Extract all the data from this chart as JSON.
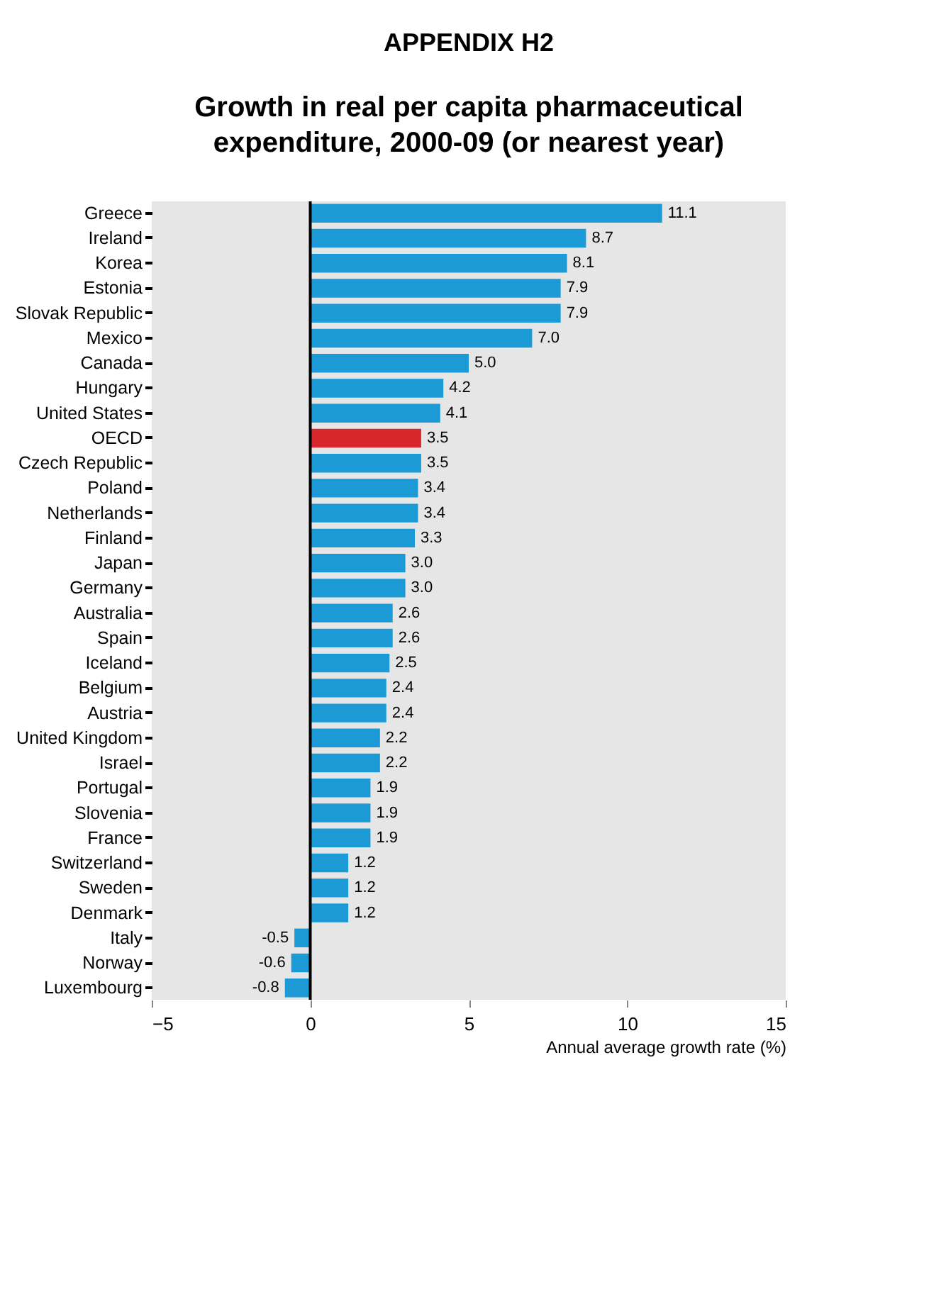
{
  "chart_data": {
    "type": "bar",
    "orientation": "horizontal",
    "title": "APPENDIX H2",
    "subtitle": "Growth in real per capita pharmaceutical expenditure, 2000-09 (or nearest year)",
    "xlabel": "Annual average growth rate (%)",
    "categories": [
      "Greece",
      "Ireland",
      "Korea",
      "Estonia",
      "Slovak Republic",
      "Mexico",
      "Canada",
      "Hungary",
      "United States",
      "OECD",
      "Czech Republic",
      "Poland",
      "Netherlands",
      "Finland",
      "Japan",
      "Germany",
      "Australia",
      "Spain",
      "Iceland",
      "Belgium",
      "Austria",
      "United Kingdom",
      "Israel",
      "Portugal",
      "Slovenia",
      "France",
      "Switzerland",
      "Sweden",
      "Denmark",
      "Italy",
      "Norway",
      "Luxembourg"
    ],
    "values": [
      11.1,
      8.7,
      8.1,
      7.9,
      7.9,
      7.0,
      5.0,
      4.2,
      4.1,
      3.5,
      3.5,
      3.4,
      3.4,
      3.3,
      3.0,
      3.0,
      2.6,
      2.6,
      2.5,
      2.4,
      2.4,
      2.2,
      2.2,
      1.9,
      1.9,
      1.9,
      1.2,
      1.2,
      1.2,
      -0.5,
      -0.6,
      -0.8
    ],
    "value_labels": [
      "11.1",
      "8.7",
      "8.1",
      "7.9",
      "7.9",
      "7.0",
      "5.0",
      "4.2",
      "4.1",
      "3.5",
      "3.5",
      "3.4",
      "3.4",
      "3.3",
      "3.0",
      "3.0",
      "2.6",
      "2.6",
      "2.5",
      "2.4",
      "2.4",
      "2.2",
      "2.2",
      "1.9",
      "1.9",
      "1.9",
      "1.2",
      "1.2",
      "1.2",
      "-0.5",
      "-0.6",
      "-0.8"
    ],
    "colors": [
      "#1b9ad6",
      "#1b9ad6",
      "#1b9ad6",
      "#1b9ad6",
      "#1b9ad6",
      "#1b9ad6",
      "#1b9ad6",
      "#1b9ad6",
      "#1b9ad6",
      "#d7262c",
      "#1b9ad6",
      "#1b9ad6",
      "#1b9ad6",
      "#1b9ad6",
      "#1b9ad6",
      "#1b9ad6",
      "#1b9ad6",
      "#1b9ad6",
      "#1b9ad6",
      "#1b9ad6",
      "#1b9ad6",
      "#1b9ad6",
      "#1b9ad6",
      "#1b9ad6",
      "#1b9ad6",
      "#1b9ad6",
      "#1b9ad6",
      "#1b9ad6",
      "#1b9ad6",
      "#1b9ad6",
      "#1b9ad6",
      "#1b9ad6"
    ],
    "xlim": [
      -5,
      15
    ],
    "xticks": [
      -5,
      0,
      5,
      10,
      15
    ],
    "ref_lines": [
      {
        "axis": "x",
        "value": 0,
        "color": "#000000"
      }
    ],
    "grid": false
  }
}
